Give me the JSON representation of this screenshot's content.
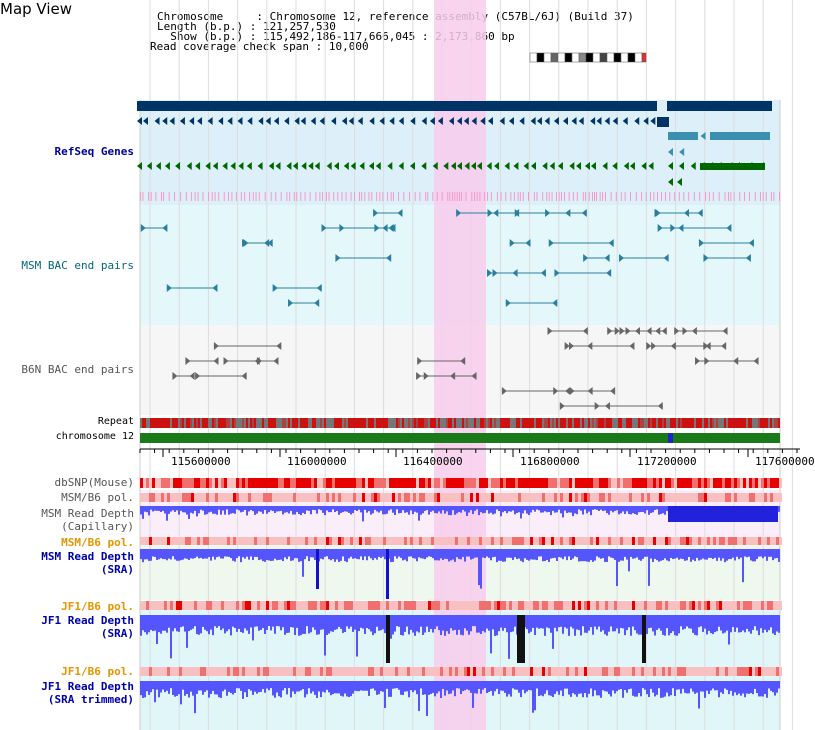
{
  "view": {
    "title": "Map View",
    "info": [
      {
        "key": "Chromosome     ",
        "value": "Chromosome 12, reference assembly (C57BL/6J) (Build 37)"
      },
      {
        "key": "Length (b.p.) ",
        "value": "121,257,530"
      },
      {
        "key": "  Show (b.p.) ",
        "value": "115,492,186-117,666,045 : 2,173,860 bp"
      },
      {
        "key": "Read coverage check span",
        "value": "10,000"
      }
    ]
  },
  "tracks": {
    "refseq": {
      "label": "RefSeq Genes",
      "color": "#000099"
    },
    "msm_bac": {
      "label": "MSM BAC end pairs",
      "color": "#006677"
    },
    "b6n_bac": {
      "label": "B6N BAC end pairs",
      "color": "#555555"
    },
    "repeat": {
      "label": "Repeat"
    },
    "chromosome": {
      "label": "chromosome 12"
    },
    "dbsnp": {
      "label": "dbSNP(Mouse)"
    },
    "msm_b6_pol_1": {
      "label": "MSM/B6 pol."
    },
    "msm_depth_cap": {
      "label1": "MSM Read Depth",
      "label2": "(Capillary)"
    },
    "msm_b6_pol_2": {
      "label": "MSM/B6 pol."
    },
    "msm_depth_sra": {
      "label1": "MSM Read Depth",
      "label2": "(SRA)"
    },
    "jf1_b6_pol_1": {
      "label": "JF1/B6 pol."
    },
    "jf1_depth_sra": {
      "label1": "JF1 Read Depth",
      "label2": "(SRA)"
    },
    "jf1_b6_pol_2": {
      "label": "JF1/B6 pol."
    },
    "jf1_depth_trim": {
      "label1": "JF1 Read Depth",
      "label2": "(SRA trimmed)"
    }
  },
  "axis": {
    "ticks": [
      "115600000",
      "116000000",
      "116400000",
      "116800000",
      "117200000",
      "117600000"
    ]
  },
  "colors": {
    "highlight": "#f8cdec",
    "gene_dark": "#003366",
    "gene_teal": "#3b8fb0",
    "gene_green": "#006600",
    "snp_red": "#e60000",
    "depth_blue": "#5555ff",
    "pol_label": "#e69500",
    "depth_label": "#0000aa"
  }
}
